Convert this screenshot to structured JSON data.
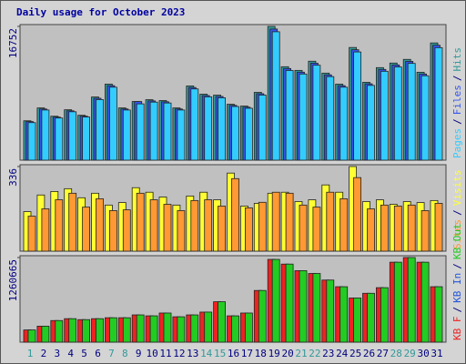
{
  "title": "Daily usage for October 2023",
  "separator": "/",
  "categories": [
    "1",
    "2",
    "3",
    "4",
    "5",
    "6",
    "7",
    "8",
    "9",
    "10",
    "11",
    "12",
    "13",
    "14",
    "15",
    "16",
    "17",
    "18",
    "19",
    "20",
    "21",
    "22",
    "23",
    "24",
    "25",
    "26",
    "27",
    "28",
    "29",
    "30",
    "31"
  ],
  "weekend": [
    true,
    false,
    false,
    false,
    false,
    false,
    true,
    true,
    false,
    false,
    false,
    false,
    false,
    true,
    true,
    false,
    false,
    false,
    false,
    false,
    true,
    true,
    false,
    false,
    false,
    false,
    false,
    true,
    true,
    false,
    false
  ],
  "weekday_color": "#000080",
  "weekend_color": "#339999",
  "chart_data": [
    {
      "type": "bar",
      "ylim": [
        0,
        16752
      ],
      "yticks": [
        16752
      ],
      "draw_order": "reverse",
      "series": [
        {
          "name": "Pages",
          "color": "#33ccff",
          "values": [
            4700,
            6280,
            5280,
            6060,
            5400,
            7590,
            9140,
            6280,
            7050,
            7270,
            7160,
            6280,
            8920,
            7930,
            7810,
            6720,
            6500,
            8150,
            16080,
            11230,
            10790,
            11890,
            10460,
            9140,
            13550,
            9360,
            11130,
            11670,
            12120,
            10570,
            14090
          ]
        },
        {
          "name": "Files",
          "color": "#3355ee",
          "values": [
            4830,
            6410,
            5390,
            6180,
            5510,
            7750,
            9330,
            6410,
            7340,
            7420,
            7310,
            6410,
            9100,
            8090,
            7980,
            6860,
            6630,
            8320,
            16420,
            11470,
            11020,
            12140,
            10680,
            9330,
            13830,
            9560,
            11360,
            11920,
            12370,
            10790,
            14390
          ]
        },
        {
          "name": "Hits",
          "color": "#339999",
          "values": [
            4930,
            6540,
            5500,
            6310,
            5620,
            7910,
            9520,
            6540,
            7340,
            7570,
            7460,
            6540,
            9290,
            8260,
            8140,
            7000,
            6770,
            8490,
            16752,
            11700,
            11240,
            12390,
            10900,
            9520,
            14110,
            9750,
            11590,
            12160,
            12620,
            11010,
            14680
          ]
        }
      ]
    },
    {
      "type": "bar",
      "ylim": [
        0,
        336
      ],
      "yticks": [
        336
      ],
      "draw_order": "reverse",
      "series": [
        {
          "name": "Sites",
          "color": "#ff9933",
          "values": [
            139,
            168,
            204,
            230,
            175,
            208,
            161,
            164,
            230,
            204,
            186,
            161,
            201,
            204,
            179,
            288,
            172,
            194,
            234,
            230,
            183,
            175,
            234,
            208,
            292,
            168,
            183,
            179,
            183,
            161,
            190
          ]
        },
        {
          "name": "Visits",
          "color": "#ffff33",
          "values": [
            157,
            223,
            237,
            248,
            212,
            230,
            183,
            193,
            252,
            234,
            215,
            183,
            219,
            234,
            204,
            310,
            179,
            190,
            230,
            234,
            197,
            204,
            263,
            234,
            336,
            197,
            204,
            186,
            197,
            193,
            201
          ]
        }
      ]
    },
    {
      "type": "bar",
      "ylim": [
        0,
        1260665
      ],
      "yticks": [
        1260665
      ],
      "draw_order": "forward",
      "series": [
        {
          "name": "KB F",
          "color": "#ee2222",
          "values": [
            182000,
            238000,
            322000,
            350000,
            336000,
            350000,
            364000,
            364000,
            406000,
            392000,
            434000,
            378000,
            406000,
            448000,
            602000,
            392000,
            434000,
            770000,
            1233000,
            1163000,
            1065000,
            1023000,
            925000,
            826000,
            658000,
            728000,
            812000,
            1191000,
            1260665,
            1191000,
            826000
          ]
        },
        {
          "name": "KB In",
          "color": "#2255dd",
          "values": [
            0,
            0,
            0,
            0,
            0,
            0,
            0,
            0,
            0,
            0,
            0,
            0,
            0,
            0,
            0,
            0,
            0,
            0,
            0,
            0,
            0,
            0,
            0,
            0,
            0,
            0,
            0,
            0,
            0,
            0,
            0
          ]
        },
        {
          "name": "KB Out",
          "color": "#22cc22",
          "values": [
            182000,
            238000,
            322000,
            350000,
            336000,
            350000,
            364000,
            364000,
            406000,
            392000,
            434000,
            378000,
            406000,
            448000,
            602000,
            392000,
            434000,
            770000,
            1233000,
            1163000,
            1065000,
            1023000,
            925000,
            826000,
            658000,
            728000,
            812000,
            1191000,
            1260665,
            1191000,
            826000
          ]
        }
      ]
    }
  ]
}
